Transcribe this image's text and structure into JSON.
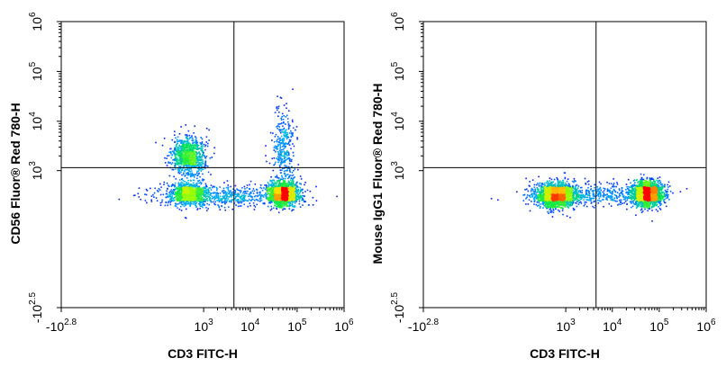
{
  "chart_data": [
    {
      "type": "scatter",
      "subtype": "flow-cytometry-density",
      "xlabel": "CD3 FITC-H",
      "ylabel": "CD56  Fluor® Red 780-H",
      "x_scale": "biexponential",
      "y_scale": "biexponential",
      "xlim": [
        -631,
        1000000
      ],
      "ylim": [
        -316,
        1000000
      ],
      "x_ticks": [
        {
          "value": -631,
          "base": "-10",
          "exp": "2.8"
        },
        {
          "value": 1000,
          "base": "10",
          "exp": "3"
        },
        {
          "value": 10000,
          "base": "10",
          "exp": "4"
        },
        {
          "value": 100000,
          "base": "10",
          "exp": "5"
        },
        {
          "value": 1000000,
          "base": "10",
          "exp": "6"
        }
      ],
      "y_ticks": [
        {
          "value": -316,
          "base": "-10",
          "exp": "2.5"
        },
        {
          "value": 1000,
          "base": "10",
          "exp": "3"
        },
        {
          "value": 10000,
          "base": "10",
          "exp": "4"
        },
        {
          "value": 100000,
          "base": "10",
          "exp": "5"
        },
        {
          "value": 1000000,
          "base": "10",
          "exp": "6"
        }
      ],
      "quadrant_gate": {
        "x": 4500,
        "y": 1150
      },
      "populations": [
        {
          "x": 450,
          "y": 2000,
          "spread_x": 0.5,
          "spread_y": 0.55,
          "weight": 0.22
        },
        {
          "x": 450,
          "y": 350,
          "spread_x": 0.55,
          "spread_y": 0.35,
          "weight": 0.2
        },
        {
          "x": 3000,
          "y": 300,
          "spread_x": 2.2,
          "spread_y": 0.3,
          "weight": 0.14
        },
        {
          "x": 50000,
          "y": 340,
          "spread_x": 0.45,
          "spread_y": 0.35,
          "weight": 0.36
        },
        {
          "x": 50000,
          "y": 3000,
          "spread_x": 0.35,
          "spread_y": 1.2,
          "weight": 0.08
        }
      ]
    },
    {
      "type": "scatter",
      "subtype": "flow-cytometry-density",
      "xlabel": "CD3 FITC-H",
      "ylabel": "Mouse IgG1  Fluor® Red 780-H",
      "x_scale": "biexponential",
      "y_scale": "biexponential",
      "xlim": [
        -631,
        1000000
      ],
      "ylim": [
        -316,
        1000000
      ],
      "x_ticks": [
        {
          "value": -631,
          "base": "-10",
          "exp": "2.8"
        },
        {
          "value": 1000,
          "base": "10",
          "exp": "3"
        },
        {
          "value": 10000,
          "base": "10",
          "exp": "4"
        },
        {
          "value": 100000,
          "base": "10",
          "exp": "5"
        },
        {
          "value": 1000000,
          "base": "10",
          "exp": "6"
        }
      ],
      "y_ticks": [
        {
          "value": -316,
          "base": "-10",
          "exp": "2.5"
        },
        {
          "value": 1000,
          "base": "10",
          "exp": "3"
        },
        {
          "value": 10000,
          "base": "10",
          "exp": "4"
        },
        {
          "value": 100000,
          "base": "10",
          "exp": "5"
        },
        {
          "value": 1000000,
          "base": "10",
          "exp": "6"
        }
      ],
      "quadrant_gate": {
        "x": 4500,
        "y": 1150
      },
      "populations": [
        {
          "x": 600,
          "y": 320,
          "spread_x": 0.6,
          "spread_y": 0.35,
          "weight": 0.45
        },
        {
          "x": 3000,
          "y": 320,
          "spread_x": 2.0,
          "spread_y": 0.3,
          "weight": 0.12
        },
        {
          "x": 55000,
          "y": 340,
          "spread_x": 0.45,
          "spread_y": 0.35,
          "weight": 0.43
        }
      ]
    }
  ],
  "colors": {
    "density_low": "#0000ff",
    "density_mid": "#00ff40",
    "density_high_mid": "#ffff00",
    "density_high": "#ff0000",
    "axis": "#000000"
  }
}
